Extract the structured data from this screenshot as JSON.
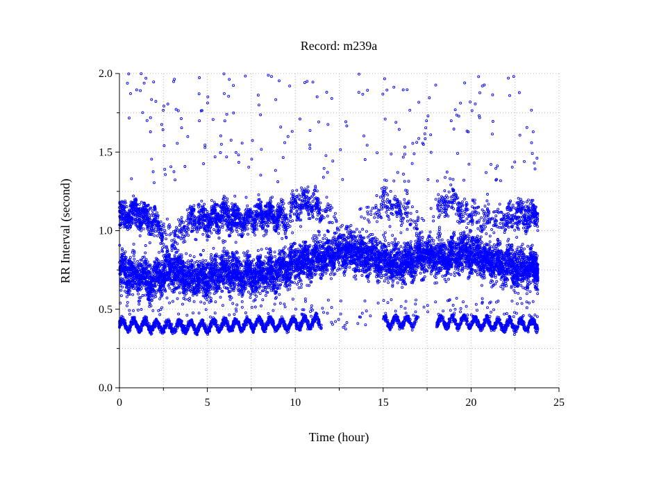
{
  "chart_data": {
    "type": "scatter",
    "title": "Record:  m239a",
    "xlabel": "Time (hour)",
    "ylabel": "RR Interval (second)",
    "xlim": [
      0,
      25
    ],
    "ylim": [
      0,
      2.0
    ],
    "xticks": [
      0,
      5,
      10,
      15,
      20,
      25
    ],
    "xtick_labels": [
      "0",
      "5",
      "10",
      "15",
      "20",
      "25"
    ],
    "yticks": [
      0.0,
      0.5,
      1.0,
      1.5,
      2.0
    ],
    "ytick_labels": [
      "0.0",
      "0.5",
      "1.0",
      "1.5",
      "2.0"
    ],
    "grid": true,
    "legend": "none",
    "marker": "open-circle",
    "series_color": "#0000ff",
    "recording_span_hours": [
      0,
      23.8
    ],
    "series": [
      {
        "name": "",
        "bands": [
          {
            "x": [
              0,
              0.5,
              1,
              1.5,
              2,
              2.5,
              3,
              3.5,
              4,
              4.5,
              5,
              5.5,
              6,
              6.5,
              7,
              7.5,
              8,
              8.5,
              9,
              9.5,
              10,
              10.5,
              11,
              11.5,
              12,
              12.5,
              13,
              13.5,
              14,
              14.5,
              15,
              15.5,
              16,
              16.5,
              17,
              17.5,
              18,
              18.5,
              19,
              19.5,
              20,
              20.5,
              21,
              21.5,
              22,
              22.5,
              23,
              23.5
            ],
            "y": [
              0.72,
              0.74,
              0.72,
              0.7,
              0.68,
              0.72,
              0.76,
              0.73,
              0.7,
              0.7,
              0.7,
              0.72,
              0.75,
              0.74,
              0.72,
              0.72,
              0.72,
              0.74,
              0.74,
              0.76,
              0.8,
              0.8,
              0.82,
              0.83,
              0.85,
              0.86,
              0.88,
              0.86,
              0.84,
              0.83,
              0.82,
              0.8,
              0.78,
              0.8,
              0.84,
              0.84,
              0.84,
              0.82,
              0.86,
              0.86,
              0.85,
              0.84,
              0.8,
              0.8,
              0.78,
              0.78,
              0.76,
              0.76
            ],
            "spread": 0.12,
            "density": 150
          },
          {
            "x": [
              0,
              0.5,
              1,
              1.5,
              2,
              2.5,
              3,
              3.5,
              4,
              4.5,
              5,
              5.5,
              6,
              6.5,
              7,
              7.5,
              8,
              8.5,
              9,
              9.5,
              10,
              10.5,
              11,
              11.5,
              12,
              12.5,
              13,
              13.5,
              14,
              14.5,
              15,
              15.5,
              16,
              16.5,
              17,
              17.5,
              18,
              18.5,
              19,
              19.5,
              20,
              20.5,
              21,
              21.5,
              22,
              22.5,
              23,
              23.5
            ],
            "y": [
              1.08,
              1.1,
              1.12,
              1.08,
              1.06,
              0.98,
              0.96,
              1.0,
              1.06,
              1.08,
              1.06,
              1.08,
              1.1,
              1.08,
              1.06,
              1.08,
              1.1,
              1.1,
              1.1,
              1.06,
              1.18,
              1.18,
              1.18,
              1.12,
              1.1,
              1.0,
              1.0,
              1.0,
              1.08,
              1.12,
              1.18,
              1.16,
              1.14,
              1.12,
              1.04,
              1.02,
              1.16,
              1.16,
              1.2,
              1.12,
              1.1,
              1.08,
              1.08,
              1.06,
              1.08,
              1.1,
              1.1,
              1.1
            ],
            "spread": 0.09,
            "density": [
              110,
              110,
              100,
              90,
              70,
              20,
              30,
              40,
              70,
              90,
              100,
              100,
              100,
              100,
              80,
              90,
              100,
              100,
              90,
              40,
              60,
              70,
              60,
              20,
              10,
              5,
              5,
              5,
              10,
              25,
              40,
              40,
              35,
              20,
              5,
              5,
              30,
              40,
              45,
              30,
              30,
              35,
              25,
              30,
              50,
              70,
              80,
              60
            ]
          },
          {
            "x": [
              0,
              0.5,
              1,
              1.5,
              2,
              2.5,
              3,
              3.5,
              4,
              4.5,
              5,
              5.5,
              6,
              6.5,
              7,
              7.5,
              8,
              8.5,
              9,
              9.5,
              10,
              10.5,
              11,
              11.5,
              12,
              12.5,
              13,
              13.5,
              14,
              14.5,
              15,
              15.5,
              16,
              16.5,
              17,
              17.5,
              18,
              18.5,
              19,
              19.5,
              20,
              20.5,
              21,
              21.5,
              22,
              22.5,
              23,
              23.5
            ],
            "y": [
              0.4,
              0.4,
              0.4,
              0.4,
              0.39,
              0.39,
              0.39,
              0.39,
              0.39,
              0.39,
              0.39,
              0.4,
              0.4,
              0.4,
              0.4,
              0.41,
              0.41,
              0.41,
              0.4,
              0.4,
              0.41,
              0.41,
              0.42,
              0.42,
              0.42,
              0.42,
              0.42,
              0.42,
              0.42,
              0.42,
              0.42,
              0.42,
              0.42,
              0.42,
              0.42,
              0.42,
              0.42,
              0.42,
              0.42,
              0.42,
              0.42,
              0.41,
              0.41,
              0.4,
              0.4,
              0.4,
              0.4,
              0.4
            ],
            "spread": 0.022,
            "density": [
              70,
              70,
              70,
              70,
              70,
              70,
              70,
              70,
              70,
              70,
              70,
              70,
              70,
              70,
              70,
              70,
              70,
              70,
              70,
              70,
              70,
              70,
              60,
              0,
              4,
              4,
              0,
              4,
              0,
              0,
              60,
              60,
              60,
              30,
              0,
              0,
              60,
              60,
              60,
              60,
              60,
              60,
              60,
              60,
              60,
              60,
              60,
              50
            ]
          }
        ],
        "outlier_range": [
          1.3,
          2.0
        ],
        "outlier_density": 4
      }
    ]
  }
}
